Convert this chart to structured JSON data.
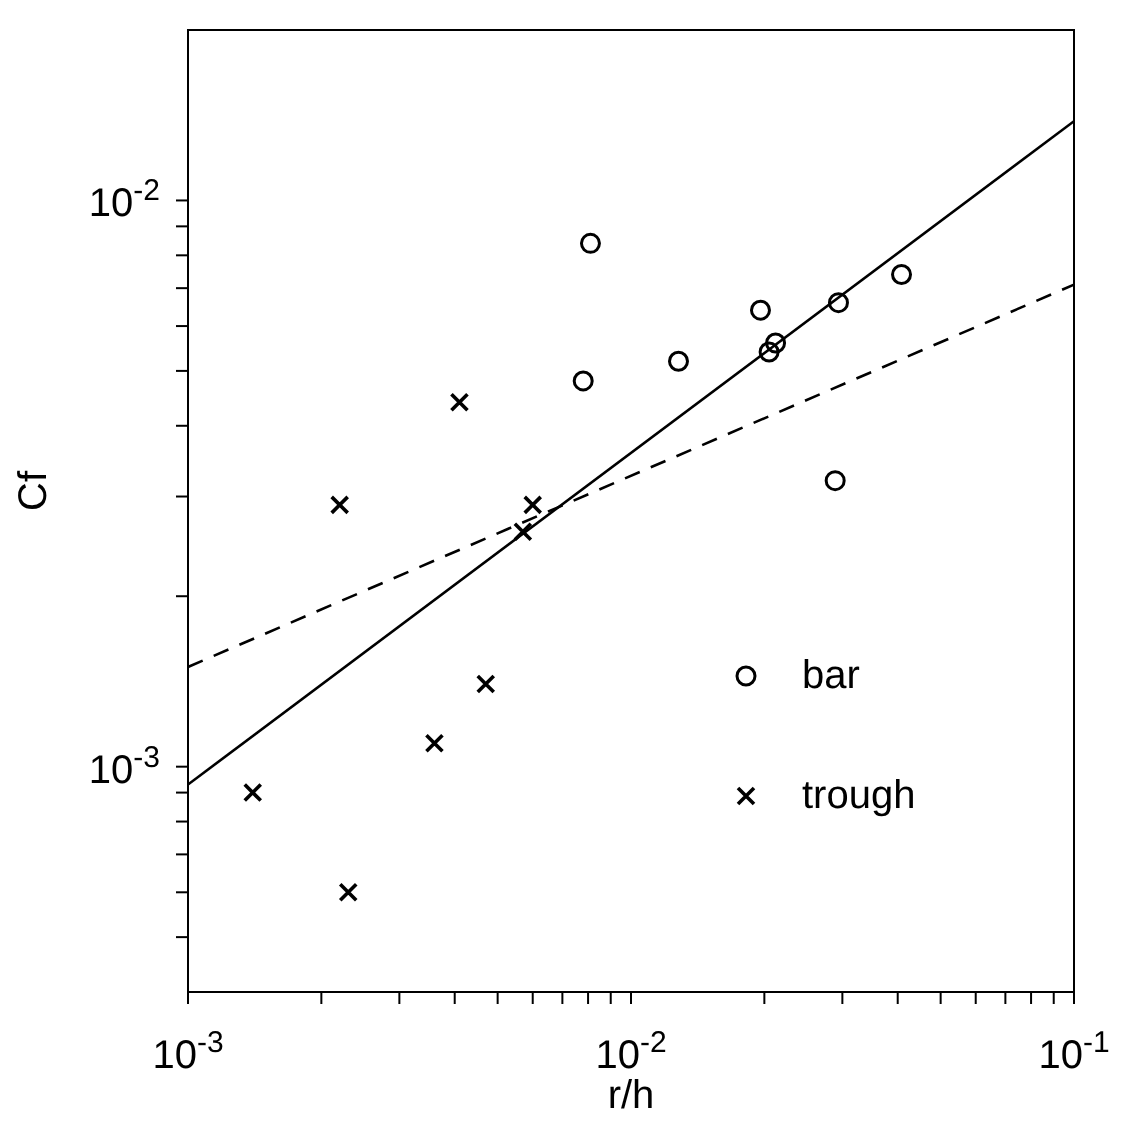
{
  "chart_data": {
    "type": "scatter",
    "xlabel": "r/h",
    "ylabel": "Cf",
    "log": "xy",
    "legend": "right",
    "grid": false,
    "xlim": [
      0.001,
      0.1
    ],
    "xticks": [
      {
        "value": 0.001,
        "label": "10$^{-3}$"
      },
      {
        "value": 0.002,
        "label": null
      },
      {
        "value": 0.003,
        "label": null
      },
      {
        "value": 0.004,
        "label": null
      },
      {
        "value": 0.005,
        "label": null
      },
      {
        "value": 0.006,
        "label": null
      },
      {
        "value": 0.007,
        "label": null
      },
      {
        "value": 0.008,
        "label": null
      },
      {
        "value": 0.009,
        "label": null
      },
      {
        "value": 0.01,
        "label": "10$^{-2}$"
      },
      {
        "value": 0.02,
        "label": null
      },
      {
        "value": 0.03,
        "label": null
      },
      {
        "value": 0.04,
        "label": null
      },
      {
        "value": 0.05,
        "label": null
      },
      {
        "value": 0.06,
        "label": null
      },
      {
        "value": 0.07,
        "label": null
      },
      {
        "value": 0.08,
        "label": null
      },
      {
        "value": 0.09,
        "label": null
      },
      {
        "value": 0.1,
        "label": "10$^{-1}$"
      }
    ],
    "ylim": [
      0.0004,
      0.02
    ],
    "yticks": [
      {
        "value": 0.0005,
        "label": null
      },
      {
        "value": 0.0006,
        "label": null
      },
      {
        "value": 0.0007,
        "label": null
      },
      {
        "value": 0.0008,
        "label": null
      },
      {
        "value": 0.0009,
        "label": null
      },
      {
        "value": 0.001,
        "label": "10$^{-3}$"
      },
      {
        "value": 0.002,
        "label": null
      },
      {
        "value": 0.003,
        "label": null
      },
      {
        "value": 0.004,
        "label": null
      },
      {
        "value": 0.005,
        "label": null
      },
      {
        "value": 0.006,
        "label": null
      },
      {
        "value": 0.007,
        "label": null
      },
      {
        "value": 0.008,
        "label": null
      },
      {
        "value": 0.009,
        "label": null
      },
      {
        "value": 0.01,
        "label": "10$^{-2}$"
      }
    ],
    "series": [
      {
        "name": "bar",
        "marker": "circle",
        "color": "#000000",
        "x": [
          0.0081,
          0.0078,
          0.0128,
          0.0196,
          0.0205,
          0.0212,
          0.0294,
          0.0408,
          0.0289
        ],
        "values": [
          0.0084,
          0.0048,
          0.0052,
          0.0064,
          0.0054,
          0.0056,
          0.0066,
          0.0074,
          0.0032
        ]
      },
      {
        "name": "trough",
        "marker": "cross",
        "color": "#000000",
        "x": [
          0.0041,
          0.0022,
          0.006,
          0.0057,
          0.0047,
          0.0036,
          0.0014,
          0.0023
        ],
        "values": [
          0.0044,
          0.0029,
          0.0029,
          0.0026,
          0.0014,
          0.0011,
          0.0009,
          0.0006
        ]
      },
      {
        "type": "line",
        "marker": "none",
        "line_style": "solid",
        "color": "#000000",
        "x": [
          0.001,
          0.1
        ],
        "values": [
          0.00093,
          0.0138
        ]
      },
      {
        "type": "line",
        "marker": "none",
        "line_style": "dashed",
        "color": "#000000",
        "x": [
          0.001,
          0.1
        ],
        "values": [
          0.0015,
          0.0071
        ]
      }
    ]
  }
}
